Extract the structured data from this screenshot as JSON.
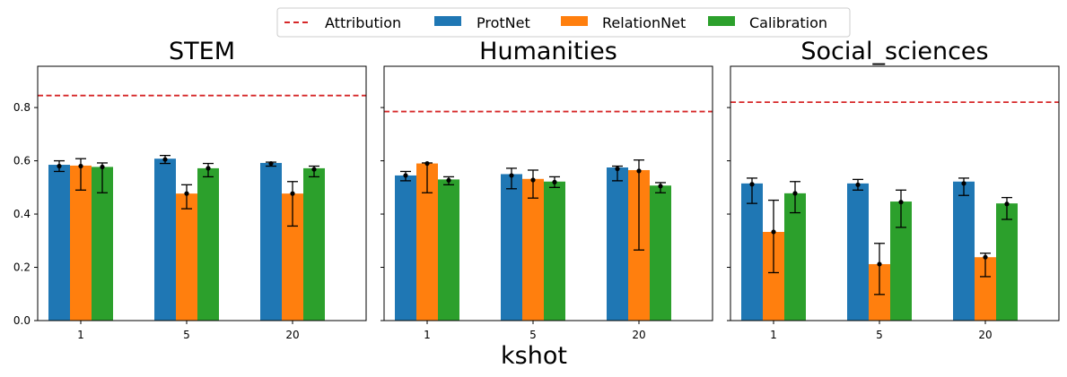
{
  "legend": {
    "items": [
      {
        "label": "Attribution",
        "kind": "line",
        "color": "#d62728"
      },
      {
        "label": "ProtNet",
        "kind": "patch",
        "color": "#1f77b4"
      },
      {
        "label": "RelationNet",
        "kind": "patch",
        "color": "#ff7f0e"
      },
      {
        "label": "Calibration",
        "kind": "patch",
        "color": "#2ca02c"
      }
    ]
  },
  "colors": {
    "ProtNet": "#1f77b4",
    "RelationNet": "#ff7f0e",
    "Calibration": "#2ca02c",
    "Attribution": "#d62728"
  },
  "chart_data": [
    {
      "type": "bar",
      "title": "STEM",
      "categories": [
        "1",
        "5",
        "20"
      ],
      "ylim": [
        0,
        0.955
      ],
      "yticks": [
        "0.0",
        "0.2",
        "0.4",
        "0.6",
        "0.8"
      ],
      "show_ytick_labels": true,
      "attribution": 0.845,
      "series": [
        {
          "name": "ProtNet",
          "values": [
            0.585,
            0.608,
            0.592
          ],
          "points": [
            0.58,
            0.605,
            0.59
          ],
          "err_low": [
            0.56,
            0.59,
            0.58
          ],
          "err_high": [
            0.6,
            0.62,
            0.595
          ]
        },
        {
          "name": "RelationNet",
          "values": [
            0.582,
            0.477,
            0.477
          ],
          "points": [
            0.58,
            0.477,
            0.477
          ],
          "err_low": [
            0.49,
            0.42,
            0.355
          ],
          "err_high": [
            0.608,
            0.51,
            0.522
          ]
        },
        {
          "name": "Calibration",
          "values": [
            0.577,
            0.572,
            0.572
          ],
          "points": [
            0.577,
            0.572,
            0.568
          ],
          "err_low": [
            0.48,
            0.54,
            0.54
          ],
          "err_high": [
            0.592,
            0.59,
            0.58
          ]
        }
      ]
    },
    {
      "type": "bar",
      "title": "Humanities",
      "categories": [
        "1",
        "5",
        "20"
      ],
      "ylim": [
        0,
        0.955
      ],
      "yticks": [
        "0.0",
        "0.2",
        "0.4",
        "0.6",
        "0.8"
      ],
      "show_ytick_labels": false,
      "attribution": 0.785,
      "series": [
        {
          "name": "ProtNet",
          "values": [
            0.545,
            0.55,
            0.575
          ],
          "points": [
            0.545,
            0.545,
            0.57
          ],
          "err_low": [
            0.525,
            0.495,
            0.525
          ],
          "err_high": [
            0.56,
            0.572,
            0.58
          ]
        },
        {
          "name": "RelationNet",
          "values": [
            0.59,
            0.532,
            0.565
          ],
          "points": [
            0.59,
            0.528,
            0.562
          ],
          "err_low": [
            0.48,
            0.46,
            0.265
          ],
          "err_high": [
            0.592,
            0.565,
            0.603
          ]
        },
        {
          "name": "Calibration",
          "values": [
            0.53,
            0.522,
            0.507
          ],
          "points": [
            0.527,
            0.52,
            0.505
          ],
          "err_low": [
            0.51,
            0.5,
            0.48
          ],
          "err_high": [
            0.54,
            0.54,
            0.518
          ]
        }
      ]
    },
    {
      "type": "bar",
      "title": "Social_sciences",
      "categories": [
        "1",
        "5",
        "20"
      ],
      "ylim": [
        0,
        0.955
      ],
      "yticks": [
        "0.0",
        "0.2",
        "0.4",
        "0.6",
        "0.8"
      ],
      "show_ytick_labels": false,
      "attribution": 0.82,
      "series": [
        {
          "name": "ProtNet",
          "values": [
            0.515,
            0.515,
            0.522
          ],
          "points": [
            0.512,
            0.51,
            0.515
          ],
          "err_low": [
            0.44,
            0.49,
            0.47
          ],
          "err_high": [
            0.535,
            0.53,
            0.535
          ]
        },
        {
          "name": "RelationNet",
          "values": [
            0.333,
            0.212,
            0.238
          ],
          "points": [
            0.333,
            0.212,
            0.238
          ],
          "err_low": [
            0.18,
            0.098,
            0.165
          ],
          "err_high": [
            0.452,
            0.29,
            0.253
          ]
        },
        {
          "name": "Calibration",
          "values": [
            0.478,
            0.447,
            0.44
          ],
          "points": [
            0.478,
            0.445,
            0.438
          ],
          "err_low": [
            0.405,
            0.35,
            0.38
          ],
          "err_high": [
            0.522,
            0.49,
            0.462
          ]
        }
      ]
    }
  ],
  "xlabel": "kshot"
}
